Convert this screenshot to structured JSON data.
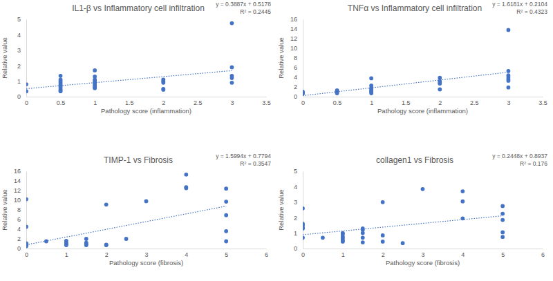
{
  "chart_data": [
    {
      "type": "scatter",
      "title": "IL1-β vs Inflammatory cell infiltration",
      "x_label": "Pathology score (inflammation)",
      "y_label": "Relative value",
      "x": [
        0,
        0,
        0.5,
        0.5,
        0.5,
        0.5,
        0.5,
        0.5,
        0.5,
        0.5,
        0.5,
        0.5,
        1,
        1,
        1,
        1,
        1,
        1,
        1,
        1,
        1,
        2,
        2,
        2,
        2,
        2,
        3,
        3,
        3,
        3,
        3
      ],
      "values": [
        0.8,
        0.35,
        1.35,
        1.1,
        1.0,
        0.9,
        0.8,
        0.7,
        0.6,
        0.5,
        0.4,
        0.35,
        1.7,
        1.3,
        1.1,
        1.0,
        0.9,
        0.8,
        0.7,
        0.6,
        0.55,
        1.1,
        1.0,
        0.9,
        0.5,
        0.45,
        4.75,
        1.9,
        1.35,
        1.2,
        0.9
      ],
      "color": "#4472c4",
      "marker": "circle",
      "xlim": [
        0,
        3.5
      ],
      "xticks": [
        0,
        0.5,
        1,
        1.5,
        2,
        2.5,
        3,
        3.5
      ],
      "ylim": [
        0,
        5
      ],
      "yticks": [
        0,
        1,
        2,
        3,
        4,
        5
      ],
      "grid": false,
      "trendline": {
        "slope": 0.3887,
        "intercept": 0.5178,
        "label": "y = 0.3887x + 0.5178",
        "r2_label": "R² = 0.2445",
        "line_style": "dotted"
      }
    },
    {
      "type": "scatter",
      "title": "TNFα vs Inflammatory cell infiltration",
      "x_label": "Pathology score (inflammation)",
      "y_label": "Relative value",
      "x": [
        0,
        0,
        0,
        0.5,
        0.5,
        0.5,
        0.5,
        1,
        1,
        1,
        1,
        1,
        1,
        1,
        2,
        2,
        2,
        2,
        2,
        3,
        3,
        3,
        3,
        3,
        3,
        3
      ],
      "values": [
        1.0,
        0.8,
        0.6,
        1.3,
        1.1,
        0.9,
        0.7,
        3.8,
        2.3,
        1.8,
        1.5,
        1.2,
        1.0,
        0.7,
        3.9,
        3.2,
        2.9,
        2.7,
        1.5,
        13.8,
        5.3,
        4.4,
        4.0,
        3.6,
        3.3,
        1.9
      ],
      "color": "#4472c4",
      "marker": "circle",
      "xlim": [
        0,
        3.5
      ],
      "xticks": [
        0,
        0.5,
        1,
        1.5,
        2,
        2.5,
        3,
        3.5
      ],
      "ylim": [
        0,
        16
      ],
      "yticks": [
        0,
        2,
        4,
        6,
        8,
        10,
        12,
        14,
        16
      ],
      "grid": false,
      "trendline": {
        "slope": 1.6181,
        "intercept": 0.2104,
        "label": "y = 1.6181x + 0.2104",
        "r2_label": "R² = 0.4323",
        "line_style": "dotted"
      }
    },
    {
      "type": "scatter",
      "title": "TIMP-1 vs Fibrosis",
      "x_label": "Pathology score (fibrosis)",
      "y_label": "Relative value",
      "x": [
        0,
        0,
        0,
        0,
        0,
        0,
        0.5,
        1,
        1,
        1,
        1,
        1.5,
        1.5,
        1.5,
        1.5,
        2,
        2,
        2,
        2.5,
        3,
        4,
        4,
        4,
        5,
        5,
        5,
        5,
        5
      ],
      "values": [
        10.2,
        4.5,
        1.1,
        0.9,
        0.7,
        0.5,
        1.5,
        1.6,
        1.2,
        0.9,
        0.7,
        2.0,
        1.2,
        0.9,
        0.7,
        9.1,
        0.8,
        0.7,
        2.0,
        9.8,
        15.3,
        12.7,
        12.5,
        12.4,
        9.7,
        6.9,
        3.6,
        1.5
      ],
      "color": "#4472c4",
      "marker": "circle",
      "xlim": [
        0,
        6
      ],
      "xticks": [
        0,
        1,
        2,
        3,
        4,
        5,
        6
      ],
      "ylim": [
        0,
        16
      ],
      "yticks": [
        0,
        2,
        4,
        6,
        8,
        10,
        12,
        14,
        16
      ],
      "grid": false,
      "trendline": {
        "slope": 1.5994,
        "intercept": 0.7794,
        "label": "y = 1.5994x + 0.7794",
        "r2_label": "R² = 0.3547",
        "line_style": "dotted"
      }
    },
    {
      "type": "scatter",
      "title": "collagen1 vs Fibrosis",
      "x_label": "Pathology score (fibrosis)",
      "y_label": "Relative value",
      "x": [
        0,
        0,
        0,
        0,
        0,
        0,
        0.5,
        1,
        1,
        1,
        1,
        1,
        1,
        1,
        1.5,
        1.5,
        1.5,
        1.5,
        1.5,
        2,
        2,
        2,
        2.5,
        3,
        4,
        4,
        4,
        5,
        5,
        5,
        5,
        5
      ],
      "values": [
        2.6,
        1.6,
        1.5,
        1.35,
        1.3,
        0.7,
        0.7,
        1.0,
        0.95,
        0.8,
        0.7,
        0.6,
        0.5,
        0.45,
        1.3,
        1.2,
        1.0,
        0.7,
        0.4,
        3.0,
        0.85,
        0.45,
        0.35,
        3.85,
        3.7,
        3.05,
        1.95,
        2.75,
        2.25,
        1.85,
        1.05,
        0.75
      ],
      "color": "#4472c4",
      "marker": "circle",
      "xlim": [
        0,
        6
      ],
      "xticks": [
        0,
        1,
        2,
        3,
        4,
        5,
        6
      ],
      "ylim": [
        0,
        5
      ],
      "yticks": [
        0,
        1,
        2,
        3,
        4,
        5
      ],
      "grid": false,
      "trendline": {
        "slope": 0.2448,
        "intercept": 0.8937,
        "label": "y = 0.2448x + 0.8937",
        "r2_label": "R² = 0.176",
        "line_style": "dotted"
      }
    }
  ]
}
